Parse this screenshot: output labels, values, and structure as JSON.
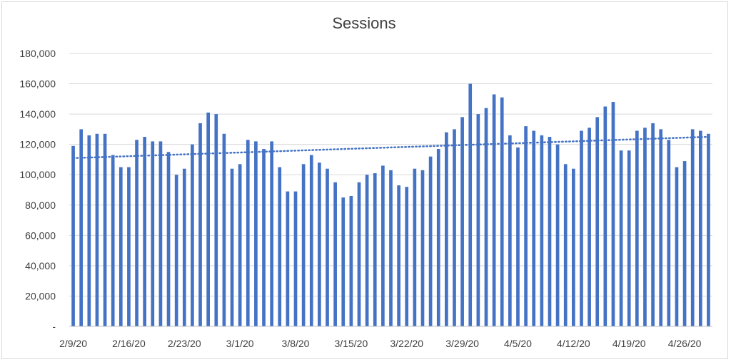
{
  "chart_data": {
    "type": "bar",
    "title": "Sessions",
    "xlabel": "",
    "ylabel": "",
    "ylim": [
      0,
      180000
    ],
    "yticks": [
      0,
      20000,
      40000,
      60000,
      80000,
      100000,
      120000,
      140000,
      160000,
      180000
    ],
    "ytick_labels": [
      "-",
      "20,000",
      "40,000",
      "60,000",
      "80,000",
      "100,000",
      "120,000",
      "140,000",
      "160,000",
      "180,000"
    ],
    "xtick_labels": [
      "2/9/20",
      "2/16/20",
      "2/23/20",
      "3/1/20",
      "3/8/20",
      "3/15/20",
      "3/22/20",
      "3/29/20",
      "4/5/20",
      "4/12/20",
      "4/19/20",
      "4/26/20"
    ],
    "grid": true,
    "legend": "none",
    "bar_color": "#4472c4",
    "trendline": {
      "type": "linear",
      "style": "dotted",
      "color": "#4472c4",
      "start": 111000,
      "end": 125000
    },
    "categories": [
      "2/9/20",
      "2/10/20",
      "2/11/20",
      "2/12/20",
      "2/13/20",
      "2/14/20",
      "2/15/20",
      "2/16/20",
      "2/17/20",
      "2/18/20",
      "2/19/20",
      "2/20/20",
      "2/21/20",
      "2/22/20",
      "2/23/20",
      "2/24/20",
      "2/25/20",
      "2/26/20",
      "2/27/20",
      "2/28/20",
      "2/29/20",
      "3/1/20",
      "3/2/20",
      "3/3/20",
      "3/4/20",
      "3/5/20",
      "3/6/20",
      "3/7/20",
      "3/8/20",
      "3/9/20",
      "3/10/20",
      "3/11/20",
      "3/12/20",
      "3/13/20",
      "3/14/20",
      "3/15/20",
      "3/16/20",
      "3/17/20",
      "3/18/20",
      "3/19/20",
      "3/20/20",
      "3/21/20",
      "3/22/20",
      "3/23/20",
      "3/24/20",
      "3/25/20",
      "3/26/20",
      "3/27/20",
      "3/28/20",
      "3/29/20",
      "3/30/20",
      "3/31/20",
      "4/1/20",
      "4/2/20",
      "4/3/20",
      "4/4/20",
      "4/5/20",
      "4/6/20",
      "4/7/20",
      "4/8/20",
      "4/9/20",
      "4/10/20",
      "4/11/20",
      "4/12/20",
      "4/13/20",
      "4/14/20",
      "4/15/20",
      "4/16/20",
      "4/17/20",
      "4/18/20",
      "4/19/20",
      "4/20/20",
      "4/21/20",
      "4/22/20",
      "4/23/20",
      "4/24/20",
      "4/25/20",
      "4/26/20",
      "4/27/20",
      "4/28/20",
      "4/29/20"
    ],
    "values": [
      119000,
      130000,
      126000,
      127000,
      127000,
      113000,
      105000,
      105000,
      123000,
      125000,
      122000,
      122000,
      115000,
      100000,
      104000,
      120000,
      134000,
      141000,
      140000,
      127000,
      104000,
      107000,
      123000,
      122000,
      117000,
      122000,
      105000,
      89000,
      89000,
      107000,
      113000,
      108000,
      104000,
      95000,
      85000,
      86000,
      95000,
      100000,
      101000,
      106000,
      103000,
      93000,
      92000,
      104000,
      103000,
      112000,
      117000,
      128000,
      130000,
      138000,
      160000,
      140000,
      144000,
      153000,
      151000,
      126000,
      118000,
      132000,
      129000,
      126000,
      125000,
      120000,
      107000,
      104000,
      129000,
      131000,
      138000,
      145000,
      148000,
      116000,
      116000,
      129000,
      131000,
      134000,
      130000,
      123000,
      105000,
      109000,
      130000,
      129000,
      127000
    ]
  }
}
